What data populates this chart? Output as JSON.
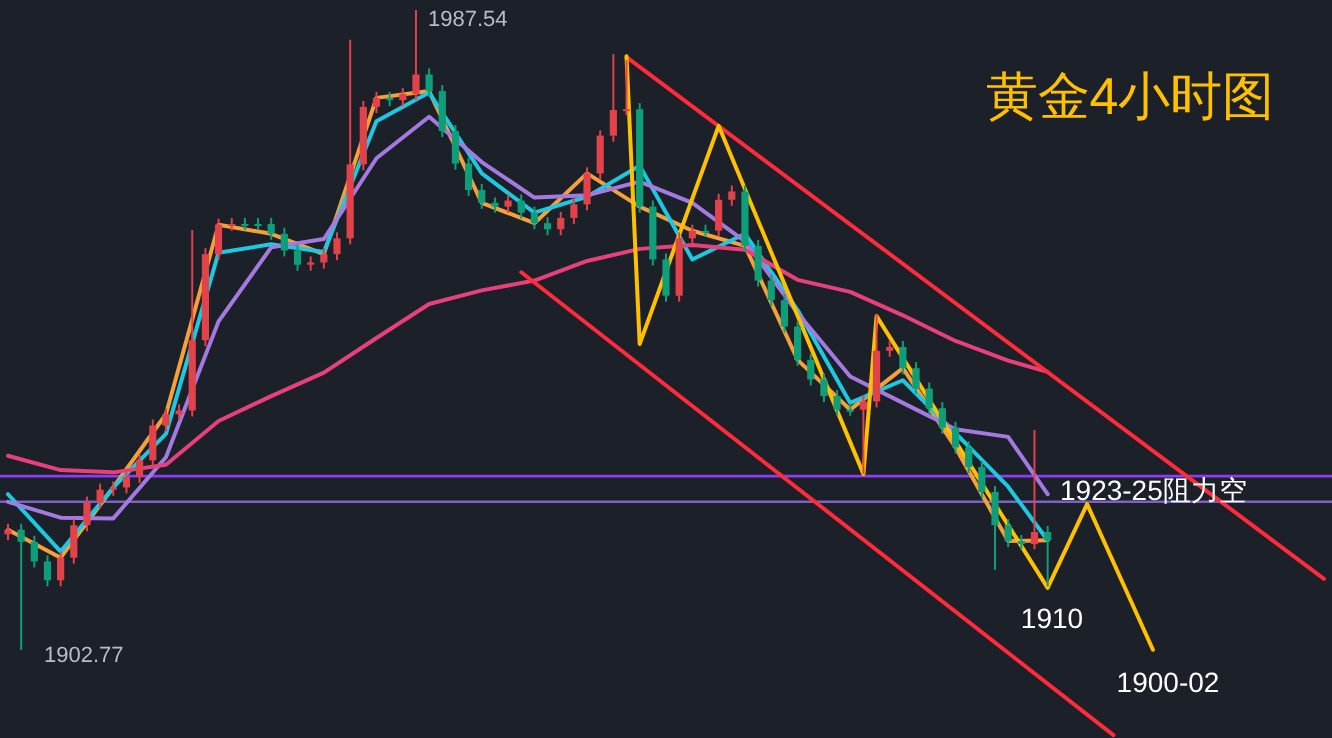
{
  "chart_data": {
    "type": "candlestick",
    "title": "黄金4小时图",
    "categories": [
      null,
      null,
      null,
      null,
      null,
      null,
      null,
      null,
      null,
      null,
      null,
      null,
      null,
      null,
      null,
      null,
      null,
      null,
      null,
      null,
      null,
      null,
      null,
      null,
      null,
      null,
      null,
      null,
      null,
      null,
      null,
      null,
      null,
      null,
      null,
      null,
      null,
      null,
      null,
      null,
      null,
      null,
      null,
      null,
      null,
      null,
      null,
      null,
      null,
      null,
      null,
      null,
      null,
      null,
      null,
      null,
      null,
      null,
      null,
      null,
      null,
      null,
      null,
      null,
      null,
      null,
      null,
      null,
      null,
      null,
      null,
      null,
      null,
      null,
      null,
      null,
      null,
      null,
      null,
      null,
      null,
      null,
      null,
      null,
      null,
      null,
      null,
      null,
      null,
      null,
      null,
      null,
      null,
      null,
      null,
      null,
      null,
      null,
      null,
      null,
      null
    ],
    "ohlc": [
      [
        1918.1,
        1919.5,
        1917.3,
        1918.7
      ],
      [
        1918.7,
        1919.5,
        1902.77,
        1917.1
      ],
      [
        1917.1,
        1917.9,
        1913.7,
        1914.5
      ],
      [
        1914.5,
        1915.3,
        1911.2,
        1912.0
      ],
      [
        1912.0,
        1915.8,
        1911.2,
        1915.0
      ],
      [
        1915.0,
        1920.1,
        1914.2,
        1919.3
      ],
      [
        1919.3,
        1923.1,
        1918.5,
        1922.3
      ],
      [
        1922.3,
        1924.8,
        1921.5,
        1924.0
      ],
      [
        1924.0,
        1925.1,
        1923.2,
        1924.3
      ],
      [
        1924.3,
        1926.5,
        1923.5,
        1925.7
      ],
      [
        1925.7,
        1928.7,
        1924.9,
        1927.9
      ],
      [
        1927.9,
        1933.3,
        1927.1,
        1932.5
      ],
      [
        1932.5,
        1934.8,
        1931.7,
        1934.0
      ],
      [
        1934.0,
        1935.3,
        1933.2,
        1934.5
      ],
      [
        1934.5,
        1958.4,
        1933.7,
        1943.8
      ],
      [
        1943.8,
        1956.0,
        1943.0,
        1955.2
      ],
      [
        1955.2,
        1959.9,
        1954.4,
        1959.1
      ],
      [
        1959.1,
        1960.0,
        1958.3,
        1959.2
      ],
      [
        1959.2,
        1960.0,
        1958.4,
        1959.2
      ],
      [
        1959.2,
        1960.0,
        1958.4,
        1959.2
      ],
      [
        1959.2,
        1960.0,
        1957.1,
        1957.9
      ],
      [
        1957.9,
        1958.7,
        1954.9,
        1955.7
      ],
      [
        1955.7,
        1956.5,
        1953.0,
        1953.8
      ],
      [
        1953.8,
        1954.9,
        1953.0,
        1954.1
      ],
      [
        1954.1,
        1956.0,
        1953.3,
        1955.2
      ],
      [
        1955.2,
        1958.1,
        1954.4,
        1957.3
      ],
      [
        1957.3,
        1983.6,
        1956.5,
        1967.1
      ],
      [
        1967.1,
        1975.5,
        1966.3,
        1974.7
      ],
      [
        1974.7,
        1976.7,
        1973.9,
        1975.9
      ],
      [
        1975.9,
        1976.7,
        1974.8,
        1975.6
      ],
      [
        1975.6,
        1977.2,
        1974.8,
        1976.4
      ],
      [
        1976.4,
        1987.54,
        1975.6,
        1979.0
      ],
      [
        1979.0,
        1979.8,
        1976.0,
        1976.8
      ],
      [
        1976.8,
        1977.6,
        1970.7,
        1971.5
      ],
      [
        1971.5,
        1972.3,
        1966.4,
        1967.2
      ],
      [
        1967.2,
        1968.0,
        1962.9,
        1963.7
      ],
      [
        1963.7,
        1964.5,
        1961.2,
        1962.0
      ],
      [
        1962.0,
        1962.7,
        1960.7,
        1961.5
      ],
      [
        1961.5,
        1963.1,
        1960.7,
        1962.3
      ],
      [
        1962.3,
        1963.1,
        1959.9,
        1960.7
      ],
      [
        1960.7,
        1961.5,
        1958.5,
        1959.3
      ],
      [
        1959.3,
        1960.1,
        1957.7,
        1958.5
      ],
      [
        1958.5,
        1960.8,
        1957.7,
        1960.0
      ],
      [
        1960.0,
        1962.6,
        1959.2,
        1961.8
      ],
      [
        1961.8,
        1966.7,
        1961.0,
        1965.9
      ],
      [
        1965.9,
        1971.6,
        1965.1,
        1970.9
      ],
      [
        1970.9,
        1981.7,
        1970.1,
        1974.3
      ],
      [
        1974.3,
        1980.9,
        1973.6,
        1974.4
      ],
      [
        1974.4,
        1975.2,
        1960.7,
        1961.5
      ],
      [
        1961.5,
        1962.3,
        1953.7,
        1954.5
      ],
      [
        1954.5,
        1955.3,
        1948.9,
        1949.7
      ],
      [
        1949.7,
        1958.1,
        1948.9,
        1957.3
      ],
      [
        1957.3,
        1959.1,
        1956.5,
        1958.3
      ],
      [
        1958.3,
        1959.1,
        1957.5,
        1958.3
      ],
      [
        1958.3,
        1963.2,
        1957.5,
        1962.4
      ],
      [
        1962.4,
        1964.3,
        1961.6,
        1963.5
      ],
      [
        1963.5,
        1964.3,
        1955.5,
        1956.3
      ],
      [
        1956.3,
        1957.1,
        1950.9,
        1951.7
      ],
      [
        1951.7,
        1952.5,
        1948.3,
        1949.1
      ],
      [
        1949.1,
        1949.9,
        1944.8,
        1945.6
      ],
      [
        1945.6,
        1946.3,
        1940.4,
        1941.2
      ],
      [
        1941.2,
        1942.0,
        1937.8,
        1938.6
      ],
      [
        1938.6,
        1939.4,
        1935.6,
        1936.4
      ],
      [
        1936.4,
        1937.2,
        1933.8,
        1934.6
      ],
      [
        1934.6,
        1935.4,
        1933.8,
        1934.6
      ],
      [
        1934.6,
        1936.5,
        1926.1,
        1935.7
      ],
      [
        1935.7,
        1947.3,
        1934.9,
        1942.4
      ],
      [
        1942.4,
        1943.7,
        1941.6,
        1942.9
      ],
      [
        1942.9,
        1943.7,
        1939.3,
        1940.1
      ],
      [
        1940.1,
        1940.9,
        1936.7,
        1937.4
      ],
      [
        1937.4,
        1938.2,
        1934.0,
        1934.8
      ],
      [
        1934.8,
        1935.6,
        1931.4,
        1932.2
      ],
      [
        1932.2,
        1933.0,
        1928.8,
        1929.6
      ],
      [
        1929.6,
        1930.4,
        1926.2,
        1927.0
      ],
      [
        1927.0,
        1927.8,
        1922.9,
        1923.7
      ],
      [
        1923.7,
        1924.5,
        1913.4,
        1919.3
      ],
      [
        1919.3,
        1920.1,
        1916.4,
        1917.2
      ],
      [
        1917.2,
        1918.0,
        1916.1,
        1916.8
      ],
      [
        1916.8,
        1931.9,
        1916.1,
        1918.4
      ],
      [
        1918.4,
        1919.2,
        1911.2,
        1917.3
      ],
      null,
      null,
      null,
      null,
      null,
      null,
      null,
      null,
      null,
      null,
      null,
      null,
      null,
      null,
      null,
      null,
      null,
      null,
      null,
      null,
      null
    ],
    "colors": [
      "#e2424a",
      "#0f9e7a",
      "#0f9e7a",
      "#0f9e7a",
      "#e2424a",
      "#e2424a",
      "#e2424a",
      "#e2424a",
      "#e2424a",
      "#e2424a",
      "#e2424a",
      "#e2424a",
      "#e2424a",
      "#e2424a",
      "#e2424a",
      "#e2424a",
      "#e2424a",
      "#e2424a",
      "#0f9e7a",
      "#0f9e7a",
      "#0f9e7a",
      "#0f9e7a",
      "#0f9e7a",
      "#e2424a",
      "#e2424a",
      "#e2424a",
      "#e2424a",
      "#e2424a",
      "#e2424a",
      "#0f9e7a",
      "#e2424a",
      "#e2424a",
      "#0f9e7a",
      "#0f9e7a",
      "#0f9e7a",
      "#0f9e7a",
      "#0f9e7a",
      "#0f9e7a",
      "#e2424a",
      "#0f9e7a",
      "#0f9e7a",
      "#0f9e7a",
      "#e2424a",
      "#e2424a",
      "#e2424a",
      "#e2424a",
      "#e2424a",
      "#e2424a",
      "#0f9e7a",
      "#0f9e7a",
      "#0f9e7a",
      "#e2424a",
      "#e2424a",
      "#0f9e7a",
      "#e2424a",
      "#e2424a",
      "#0f9e7a",
      "#0f9e7a",
      "#0f9e7a",
      "#0f9e7a",
      "#0f9e7a",
      "#0f9e7a",
      "#0f9e7a",
      "#0f9e7a",
      "#0f9e7a",
      "#e2424a",
      "#e2424a",
      "#e2424a",
      "#0f9e7a",
      "#0f9e7a",
      "#0f9e7a",
      "#0f9e7a",
      "#0f9e7a",
      "#0f9e7a",
      "#0f9e7a",
      "#0f9e7a",
      "#0f9e7a",
      "#0f9e7a",
      "#e2424a",
      "#0f9e7a",
      null,
      null,
      null,
      null,
      null,
      null,
      null,
      null,
      null,
      null,
      null,
      null,
      null,
      null,
      null,
      null,
      null,
      null,
      null,
      null,
      null
    ],
    "series": [
      {
        "type": "line",
        "color": "#f5a13a",
        "values": [
          1918.7,
          null,
          null,
          null,
          1915.0,
          null,
          null,
          null,
          1924.3,
          null,
          null,
          null,
          1934.0,
          null,
          null,
          null,
          1959.1,
          null,
          null,
          null,
          1957.9,
          null,
          null,
          null,
          1955.2,
          null,
          null,
          null,
          1975.9,
          null,
          null,
          null,
          1976.8,
          null,
          null,
          null,
          1962.0,
          null,
          null,
          null,
          1959.3,
          null,
          null,
          null,
          1965.9,
          null,
          null,
          null,
          1961.5,
          null,
          null,
          null,
          1958.3,
          null,
          null,
          null,
          1956.3,
          null,
          null,
          null,
          1941.2,
          null,
          null,
          null,
          1934.6,
          null,
          null,
          null,
          1940.1,
          null,
          null,
          null,
          1929.6,
          null,
          null,
          null,
          1917.2,
          null,
          null,
          1917.3,
          null,
          null,
          null,
          null,
          null,
          null,
          null,
          null,
          null,
          null,
          null,
          null,
          null,
          null,
          null,
          null,
          null,
          null,
          null,
          null,
          null
        ]
      },
      {
        "type": "line",
        "color": "#1ec8e0",
        "values": [
          1923.4,
          null,
          null,
          null,
          1915.8,
          null,
          null,
          null,
          1924.3,
          null,
          null,
          null,
          1931.4,
          null,
          null,
          null,
          1955.4,
          null,
          null,
          null,
          1956.5,
          null,
          null,
          null,
          1955.5,
          null,
          null,
          null,
          1972.8,
          null,
          null,
          null,
          1976.6,
          null,
          null,
          null,
          1965.9,
          null,
          null,
          null,
          1960.7,
          null,
          null,
          null,
          1962.8,
          null,
          null,
          null,
          1966.9,
          null,
          null,
          null,
          1954.5,
          null,
          null,
          null,
          1957.9,
          null,
          null,
          null,
          1947.8,
          null,
          null,
          null,
          1935.5,
          null,
          null,
          null,
          1938.5,
          null,
          null,
          null,
          1931.5,
          null,
          null,
          null,
          1924.4,
          null,
          null,
          1917.3,
          null,
          null,
          null,
          null,
          null,
          null,
          null,
          null,
          null,
          null,
          null,
          null,
          null,
          null,
          null,
          null,
          null,
          null,
          null,
          null,
          null
        ]
      },
      {
        "type": "line",
        "color": "#a57ae0",
        "values": [
          1922.4,
          null,
          null,
          null,
          1920.3,
          null,
          null,
          null,
          1920.2,
          null,
          null,
          null,
          1928.3,
          null,
          null,
          null,
          1946.3,
          null,
          null,
          null,
          1956.1,
          null,
          null,
          null,
          1957.2,
          null,
          null,
          null,
          1967.9,
          null,
          null,
          null,
          1973.4,
          null,
          null,
          null,
          1967.4,
          null,
          null,
          null,
          1962.7,
          null,
          null,
          null,
          1963.0,
          null,
          null,
          null,
          1964.8,
          null,
          null,
          null,
          1962.0,
          null,
          null,
          null,
          1956.9,
          null,
          null,
          null,
          1947.4,
          null,
          null,
          null,
          1939.0,
          null,
          null,
          null,
          1935.5,
          null,
          null,
          null,
          1932.0,
          null,
          null,
          null,
          1931.0,
          null,
          null,
          1923.4,
          null,
          null,
          null,
          null,
          null,
          null,
          null,
          null,
          null,
          null,
          null,
          null,
          null,
          null,
          null,
          null,
          null,
          null,
          null,
          null,
          null
        ]
      },
      {
        "type": "line",
        "color": "#e8407a",
        "values": [
          1928.5,
          null,
          null,
          null,
          1926.6,
          null,
          null,
          null,
          1926.3,
          null,
          null,
          null,
          1927.3,
          null,
          null,
          null,
          1933.1,
          null,
          null,
          null,
          1936.4,
          null,
          null,
          null,
          1939.5,
          null,
          null,
          null,
          1944.1,
          null,
          null,
          null,
          1948.6,
          null,
          null,
          null,
          1950.4,
          null,
          null,
          null,
          1951.7,
          null,
          null,
          null,
          1954.3,
          null,
          null,
          null,
          1955.9,
          null,
          null,
          null,
          1956.4,
          null,
          null,
          null,
          1955.8,
          null,
          null,
          null,
          1951.8,
          null,
          null,
          null,
          1950.2,
          null,
          null,
          null,
          1947.1,
          null,
          null,
          null,
          1943.7,
          null,
          null,
          null,
          1941.1,
          null,
          null,
          1939.6,
          null,
          null,
          null,
          null,
          null,
          null,
          null,
          null,
          null,
          null,
          null,
          null,
          null,
          null,
          null,
          null,
          null,
          null,
          null,
          null,
          null
        ]
      },
      {
        "type": "line",
        "color": "#ff2a3a",
        "values": [
          null,
          null,
          null,
          null,
          null,
          null,
          null,
          null,
          null,
          null,
          null,
          null,
          null,
          null,
          null,
          null,
          null,
          null,
          null,
          null,
          null,
          null,
          null,
          null,
          null,
          null,
          null,
          null,
          null,
          null,
          null,
          null,
          null,
          null,
          null,
          null,
          null,
          null,
          null,
          null,
          null,
          null,
          null,
          null,
          null,
          null,
          null,
          1981.3,
          null,
          null,
          null,
          null,
          null,
          null,
          null,
          null,
          null,
          null,
          null,
          null,
          null,
          null,
          null,
          null,
          null,
          null,
          null,
          null,
          null,
          null,
          null,
          null,
          null,
          null,
          null,
          null,
          null,
          null,
          null,
          null,
          null,
          null,
          null,
          null,
          null,
          null,
          null,
          null,
          null,
          null,
          null,
          null,
          null,
          null,
          null,
          null,
          null,
          null,
          null,
          null,
          1912.2
        ]
      },
      {
        "type": "line",
        "color": "#ff2a3a",
        "values": [
          null,
          null,
          null,
          null,
          null,
          null,
          null,
          null,
          null,
          null,
          null,
          null,
          null,
          null,
          null,
          null,
          null,
          null,
          null,
          null,
          null,
          null,
          null,
          null,
          null,
          null,
          null,
          null,
          null,
          null,
          null,
          null,
          null,
          null,
          null,
          null,
          null,
          null,
          null,
          1952.8,
          null,
          null,
          null,
          null,
          null,
          null,
          null,
          null,
          null,
          null,
          null,
          null,
          null,
          null,
          null,
          null,
          null,
          null,
          null,
          null,
          null,
          null,
          null,
          null,
          null,
          null,
          null,
          null,
          null,
          null,
          null,
          null,
          null,
          null,
          null,
          null,
          null,
          null,
          null,
          null,
          null,
          null,
          null,
          null,
          1891.5,
          null,
          null,
          null,
          null,
          null,
          null,
          null,
          null,
          null,
          null,
          null,
          null,
          null,
          null,
          null,
          null
        ]
      },
      {
        "type": "line",
        "color": "#ffc000",
        "values": [
          null,
          null,
          null,
          null,
          null,
          null,
          null,
          null,
          null,
          null,
          null,
          null,
          null,
          null,
          null,
          null,
          null,
          null,
          null,
          null,
          null,
          null,
          null,
          null,
          null,
          null,
          null,
          null,
          null,
          null,
          null,
          null,
          null,
          null,
          null,
          null,
          null,
          null,
          null,
          null,
          null,
          null,
          null,
          null,
          null,
          null,
          null,
          1981.4,
          1943.3,
          null,
          null,
          null,
          null,
          null,
          1972.2,
          null,
          null,
          null,
          null,
          null,
          null,
          null,
          null,
          null,
          null,
          1926.1,
          1947.0,
          null,
          null,
          null,
          null,
          null,
          null,
          null,
          null,
          null,
          null,
          null,
          null,
          1911.0,
          null,
          null,
          1922.1,
          null,
          null,
          null,
          null,
          1902.8,
          null,
          null,
          null,
          null,
          null,
          null,
          null,
          null,
          null,
          null,
          null,
          null,
          null
        ]
      }
    ],
    "ref_lines": [
      {
        "axis": "y",
        "value": 1925.8,
        "color": "#8a3ff0"
      },
      {
        "axis": "y",
        "value": 1922.4,
        "color": "#7d62c4"
      }
    ],
    "annotations": [
      "1987.54",
      "1902.77",
      "1923-25阻力空",
      {
        "text": "1910",
        "y": 1911.0
      },
      "1900-02"
    ]
  }
}
